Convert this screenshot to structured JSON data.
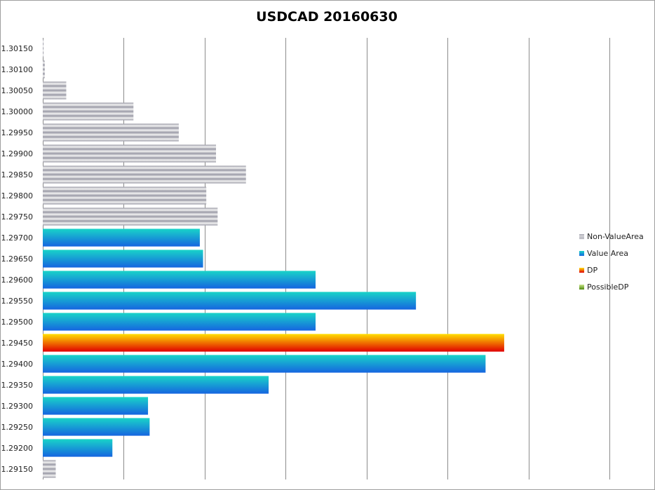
{
  "chart_data": {
    "type": "bar",
    "orientation": "horizontal",
    "title": "USDCAD 20160630",
    "xlabel": "",
    "ylabel": "",
    "x_axis_labels_shown": false,
    "grid": "vertical",
    "legend_position": "right",
    "categories": [
      "1.30150",
      "1.30100",
      "1.30050",
      "1.30000",
      "1.29950",
      "1.29900",
      "1.29850",
      "1.29800",
      "1.29750",
      "1.29700",
      "1.29650",
      "1.29600",
      "1.29550",
      "1.29500",
      "1.29450",
      "1.29400",
      "1.29350",
      "1.29300",
      "1.29250",
      "1.29200",
      "1.29150"
    ],
    "values": [
      0.1,
      0.25,
      2.9,
      11.2,
      16.8,
      21.4,
      25.1,
      20.2,
      21.6,
      19.4,
      19.8,
      33.7,
      46.1,
      33.7,
      57.0,
      54.7,
      27.9,
      13.0,
      13.2,
      8.6,
      1.6
    ],
    "bar_series": [
      "Non-ValueArea",
      "Non-ValueArea",
      "Non-ValueArea",
      "Non-ValueArea",
      "Non-ValueArea",
      "Non-ValueArea",
      "Non-ValueArea",
      "Non-ValueArea",
      "Non-ValueArea",
      "Value Area",
      "Value Area",
      "Value Area",
      "Value Area",
      "Value Area",
      "DP",
      "Value Area",
      "Value Area",
      "Value Area",
      "Value Area",
      "Value Area",
      "Non-ValueArea"
    ],
    "xlim": [
      0,
      70
    ],
    "x_grid_step": 10,
    "series": [
      {
        "name": "Non-ValueArea",
        "color_light": "#f2f2f2",
        "color_dark": "#9a9aa6"
      },
      {
        "name": "Value Area",
        "color_light": "#19d4c8",
        "color_dark": "#1565e0"
      },
      {
        "name": "DP",
        "color_light": "#ffe000",
        "color_dark": "#e00000"
      },
      {
        "name": "PossibleDP",
        "color_light": "#c9e48a",
        "color_dark": "#4f8a10"
      }
    ]
  }
}
